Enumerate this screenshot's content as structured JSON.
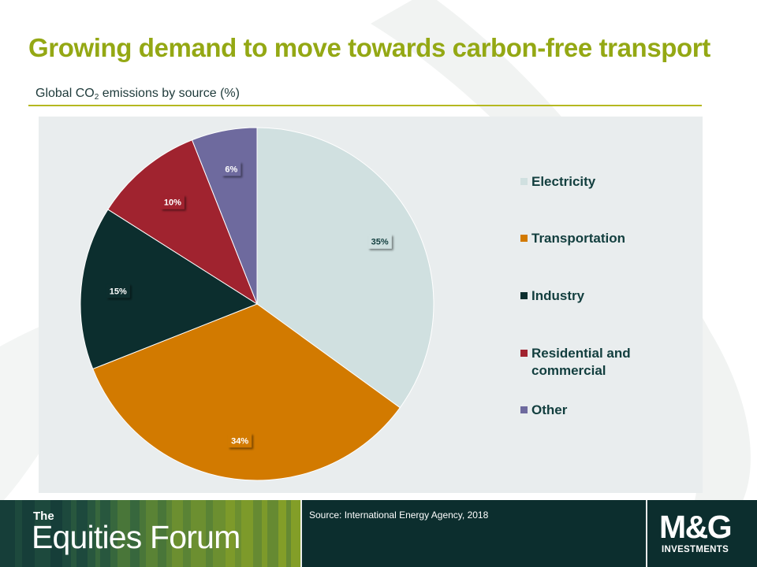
{
  "slide": {
    "title": "Growing demand to move towards carbon-free transport",
    "subtitle_parts": {
      "before": "Global CO",
      "sub": "2",
      "after": " emissions by source (%)"
    }
  },
  "chart_data": {
    "type": "pie",
    "start_angle_deg": 0,
    "direction": "clockwise",
    "labels": [
      "Electricity",
      "Transportation",
      "Industry",
      "Residential and commercial",
      "Other"
    ],
    "values": [
      35,
      34,
      15,
      10,
      6
    ],
    "value_labels": [
      "35%",
      "34%",
      "15%",
      "10%",
      "6%"
    ],
    "colors": [
      "#d0e0e0",
      "#d27a00",
      "#0c2e2e",
      "#a0232f",
      "#6e6a9e"
    ],
    "legend_position": "right",
    "legend_label_colors": [
      "#123e3e",
      "#123e3e",
      "#123e3e",
      "#123e3e",
      "#123e3e"
    ]
  },
  "footer": {
    "brand_small": "The",
    "brand_main": "Equities Forum",
    "source": "Source: International Energy Agency, 2018",
    "logo_main": "M&G",
    "logo_sub": "INVESTMENTS"
  },
  "theme": {
    "title_color": "#94a814",
    "footer_bg": "#0c2e2e",
    "plot_bg": "#e9edee"
  }
}
